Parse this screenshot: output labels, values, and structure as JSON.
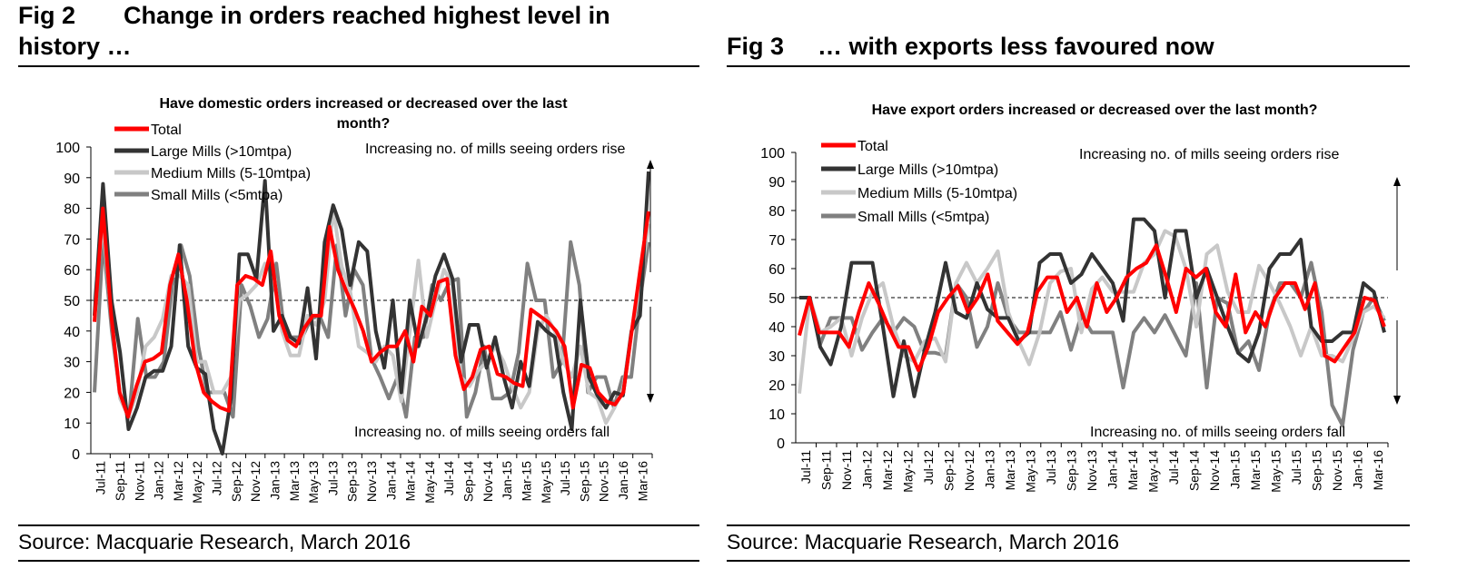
{
  "fig2": {
    "number": "Fig 2",
    "title_line1": "Change in orders reached highest level in",
    "title_line2": "history …",
    "source": "Source: Macquarie Research, March 2016"
  },
  "fig3": {
    "number": "Fig 3",
    "title_line1": "… with exports less favoured now",
    "source": "Source: Macquarie Research, March 2016"
  },
  "chart_data": [
    {
      "type": "line",
      "title": "Have domestic orders increased or decreased over the last month?",
      "title_lines": [
        "Have domestic orders increased or decreased over the last",
        "month?"
      ],
      "ylim": [
        0,
        100
      ],
      "yticks": [
        0,
        10,
        20,
        30,
        40,
        50,
        60,
        70,
        80,
        90,
        100
      ],
      "xtick_labels": [
        "Jul-11",
        "Sep-11",
        "Nov-11",
        "Jan-12",
        "Mar-12",
        "May-12",
        "Jul-12",
        "Sep-12",
        "Nov-12",
        "Jan-13",
        "Mar-13",
        "May-13",
        "Jul-13",
        "Sep-13",
        "Nov-13",
        "Jan-14",
        "Mar-14",
        "May-14",
        "Jul-14",
        "Sep-14",
        "Nov-14",
        "Jan-15",
        "Mar-15",
        "May-15",
        "Jul-15",
        "Sep-15",
        "Nov-15",
        "Jan-16",
        "Mar-16"
      ],
      "reference_line": 50,
      "annotations": {
        "top": "Increasing no. of mills seeing orders rise",
        "bottom": "Increasing no. of mills seeing orders fall"
      },
      "grid": false,
      "legend_position": "top-left",
      "series": [
        {
          "name": "Total",
          "color": "#ff0000",
          "values": [
            43,
            80,
            45,
            20,
            12,
            22,
            30,
            31,
            33,
            55,
            65,
            50,
            30,
            20,
            17,
            15,
            14,
            55,
            58,
            57,
            55,
            66,
            45,
            37,
            35,
            41,
            45,
            45,
            74,
            60,
            53,
            47,
            40,
            30,
            33,
            35,
            35,
            40,
            30,
            48,
            45,
            56,
            57,
            32,
            21,
            25,
            34,
            35,
            26,
            25,
            23,
            22,
            47,
            45,
            43,
            40,
            35,
            15,
            29,
            28,
            20,
            17,
            16,
            20,
            40,
            60,
            79
          ]
        },
        {
          "name": "Large Mills (>10mtpa)",
          "color": "#333333",
          "values": [
            45,
            88,
            50,
            33,
            8,
            15,
            25,
            27,
            27,
            35,
            68,
            35,
            28,
            26,
            8,
            0,
            18,
            65,
            65,
            57,
            89,
            40,
            45,
            38,
            36,
            54,
            31,
            69,
            81,
            73,
            55,
            69,
            66,
            40,
            28,
            50,
            20,
            50,
            35,
            45,
            58,
            65,
            57,
            30,
            42,
            42,
            28,
            38,
            25,
            15,
            30,
            22,
            43,
            40,
            38,
            20,
            8,
            50,
            25,
            19,
            15,
            20,
            19,
            40,
            45,
            92
          ]
        },
        {
          "name": "Medium Mills (5-10mtpa)",
          "color": "#c8c8c8",
          "values": [
            50,
            75,
            45,
            18,
            12,
            20,
            35,
            38,
            44,
            58,
            58,
            55,
            30,
            30,
            20,
            20,
            25,
            50,
            52,
            55,
            62,
            58,
            40,
            32,
            32,
            45,
            42,
            50,
            80,
            61,
            53,
            35,
            33,
            30,
            35,
            32,
            17,
            40,
            63,
            38,
            50,
            60,
            55,
            25,
            22,
            27,
            30,
            35,
            30,
            22,
            15,
            20,
            40,
            45,
            40,
            30,
            25,
            35,
            20,
            18,
            10,
            15,
            21,
            40,
            55,
            75
          ]
        },
        {
          "name": "Small Mills (<5mtpa)",
          "color": "#808080",
          "values": [
            20,
            70,
            40,
            18,
            12,
            44,
            25,
            25,
            30,
            55,
            68,
            58,
            35,
            20,
            20,
            20,
            12,
            55,
            48,
            38,
            44,
            62,
            38,
            38,
            38,
            44,
            45,
            38,
            68,
            45,
            60,
            55,
            31,
            25,
            18,
            25,
            12,
            38,
            38,
            55,
            50,
            56,
            57,
            12,
            20,
            35,
            18,
            18,
            20,
            33,
            62,
            50,
            50,
            25,
            30,
            69,
            55,
            20,
            25,
            25,
            15,
            25,
            25,
            50,
            69
          ]
        }
      ]
    },
    {
      "type": "line",
      "title": "Have export orders increased or decreased over the last month?",
      "ylim": [
        0,
        100
      ],
      "yticks": [
        0,
        10,
        20,
        30,
        40,
        50,
        60,
        70,
        80,
        90,
        100
      ],
      "xtick_labels": [
        "Jul-11",
        "Sep-11",
        "Nov-11",
        "Jan-12",
        "Mar-12",
        "May-12",
        "Jul-12",
        "Sep-12",
        "Nov-12",
        "Jan-13",
        "Mar-13",
        "May-13",
        "Jul-13",
        "Sep-13",
        "Nov-13",
        "Jan-14",
        "Mar-14",
        "May-14",
        "Jul-14",
        "Sep-14",
        "Nov-14",
        "Jan-15",
        "Mar-15",
        "May-15",
        "Jul-15",
        "Sep-15",
        "Nov-15",
        "Jan-16",
        "Mar-16"
      ],
      "reference_line": 50,
      "annotations": {
        "top": "Increasing no. of mills seeing orders rise",
        "bottom": "Increasing no. of mills seeing orders fall",
        "top_underlined_word": "rise",
        "bottom_underlined_word": "fall"
      },
      "grid": false,
      "legend_position": "top-left",
      "series": [
        {
          "name": "Total",
          "color": "#ff0000",
          "values": [
            37,
            50,
            38,
            38,
            38,
            33,
            45,
            55,
            48,
            40,
            33,
            33,
            25,
            33,
            45,
            50,
            54,
            45,
            50,
            58,
            42,
            38,
            34,
            38,
            52,
            57,
            57,
            45,
            50,
            40,
            55,
            45,
            50,
            57,
            60,
            62,
            68,
            57,
            45,
            60,
            57,
            60,
            45,
            40,
            58,
            38,
            45,
            40,
            50,
            55,
            55,
            46,
            55,
            30,
            28,
            33,
            38,
            50,
            49,
            40
          ]
        },
        {
          "name": "Large Mills (>10mtpa)",
          "color": "#333333",
          "values": [
            50,
            50,
            33,
            27,
            40,
            62,
            62,
            62,
            40,
            16,
            35,
            16,
            32,
            45,
            62,
            45,
            43,
            55,
            46,
            43,
            43,
            35,
            38,
            62,
            65,
            65,
            55,
            58,
            65,
            60,
            55,
            42,
            77,
            77,
            73,
            50,
            73,
            73,
            50,
            60,
            50,
            40,
            31,
            28,
            38,
            60,
            65,
            65,
            70,
            40,
            35,
            35,
            38,
            38,
            55,
            52,
            38
          ]
        },
        {
          "name": "Medium Mills (5-10mtpa)",
          "color": "#c8c8c8",
          "values": [
            17,
            50,
            38,
            40,
            43,
            30,
            43,
            52,
            55,
            40,
            30,
            28,
            35,
            36,
            28,
            55,
            62,
            55,
            60,
            66,
            45,
            35,
            27,
            38,
            55,
            59,
            60,
            38,
            53,
            57,
            52,
            52,
            52,
            62,
            65,
            73,
            71,
            60,
            40,
            65,
            68,
            52,
            45,
            45,
            61,
            55,
            48,
            40,
            30,
            40,
            30,
            30,
            28,
            36,
            45,
            47,
            43
          ]
        },
        {
          "name": "Small Mills (<5mtpa)",
          "color": "#808080",
          "values": [
            50,
            50,
            34,
            43,
            43,
            43,
            32,
            38,
            43,
            38,
            43,
            40,
            31,
            31,
            30,
            55,
            50,
            33,
            40,
            55,
            43,
            38,
            38,
            38,
            38,
            45,
            32,
            44,
            38,
            38,
            38,
            19,
            38,
            43,
            38,
            44,
            37,
            30,
            55,
            19,
            50,
            48,
            31,
            35,
            25,
            45,
            55,
            55,
            50,
            62,
            45,
            13,
            6,
            32,
            45,
            50,
            42
          ]
        }
      ]
    }
  ]
}
